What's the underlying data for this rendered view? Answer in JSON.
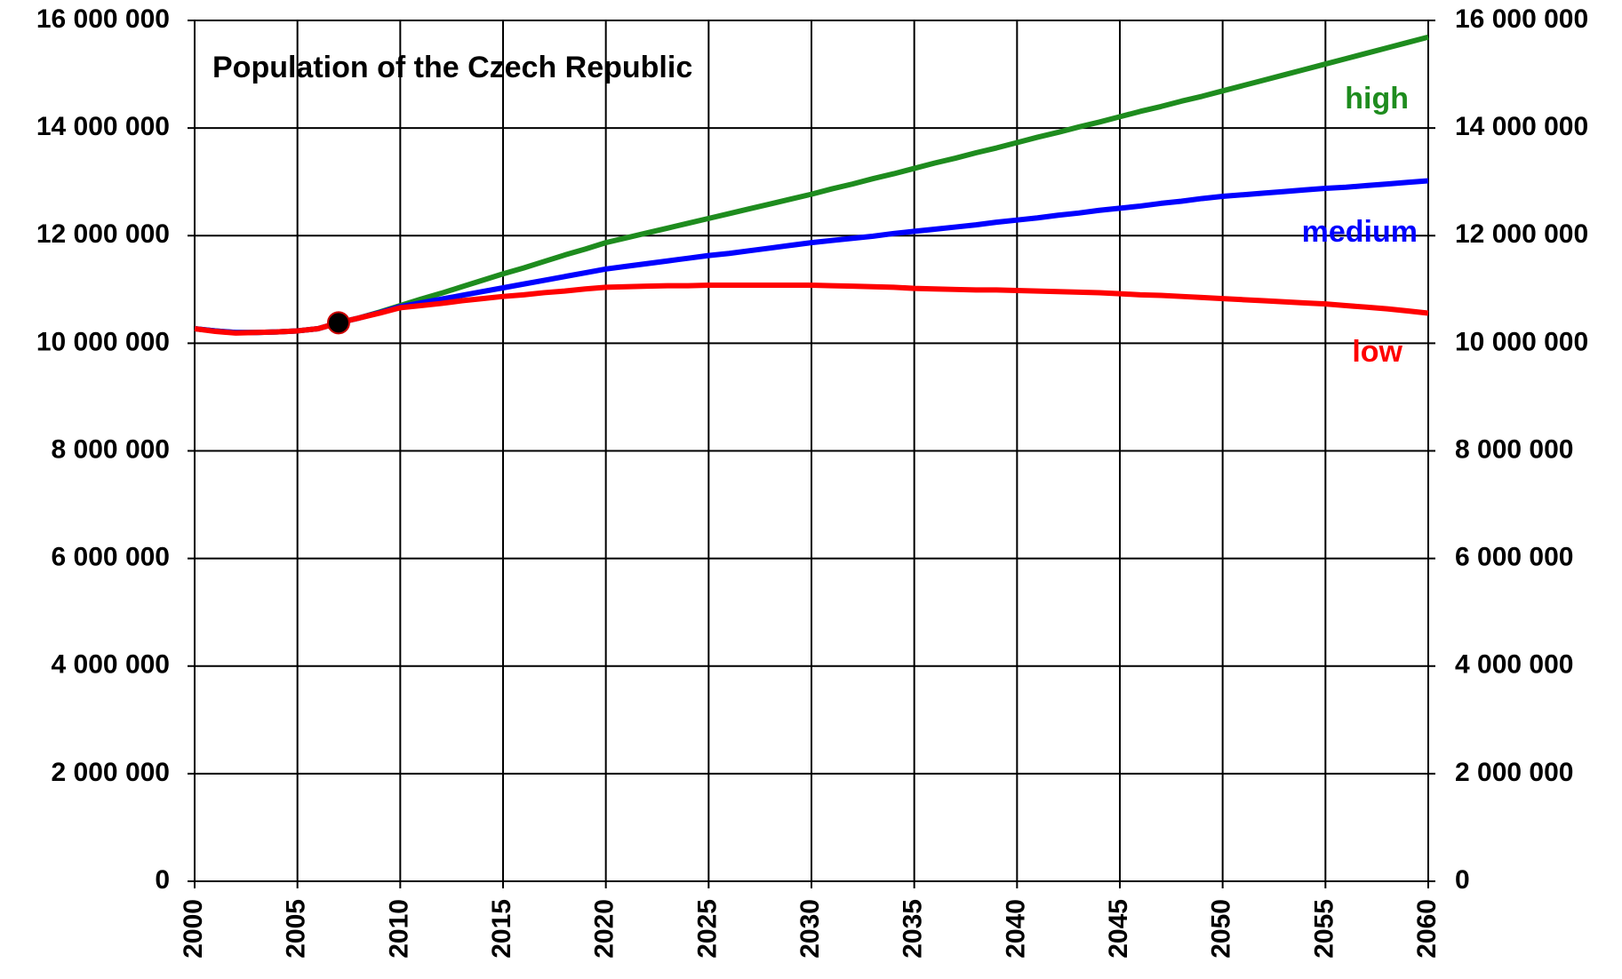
{
  "chart_data": {
    "type": "line",
    "title": "Population of the Czech Republic",
    "x": [
      2000,
      2001,
      2002,
      2003,
      2004,
      2005,
      2006,
      2007,
      2008,
      2009,
      2010,
      2011,
      2012,
      2013,
      2014,
      2015,
      2016,
      2017,
      2018,
      2019,
      2020,
      2021,
      2022,
      2023,
      2024,
      2025,
      2026,
      2027,
      2028,
      2029,
      2030,
      2031,
      2032,
      2033,
      2034,
      2035,
      2036,
      2037,
      2038,
      2039,
      2040,
      2041,
      2042,
      2043,
      2044,
      2045,
      2046,
      2047,
      2048,
      2049,
      2050,
      2051,
      2052,
      2053,
      2054,
      2055,
      2056,
      2057,
      2058,
      2059,
      2060
    ],
    "series": [
      {
        "name": "high",
        "color": "#1e8c1e",
        "values": [
          10270000,
          10230000,
          10200000,
          10200000,
          10210000,
          10230000,
          10270000,
          10380000,
          10470000,
          10580000,
          10700000,
          10820000,
          10930000,
          11050000,
          11170000,
          11290000,
          11400000,
          11520000,
          11640000,
          11750000,
          11870000,
          11960000,
          12050000,
          12140000,
          12230000,
          12320000,
          12410000,
          12500000,
          12590000,
          12680000,
          12770000,
          12870000,
          12960000,
          13060000,
          13150000,
          13250000,
          13350000,
          13440000,
          13540000,
          13630000,
          13730000,
          13830000,
          13920000,
          14020000,
          14110000,
          14210000,
          14310000,
          14400000,
          14500000,
          14590000,
          14690000,
          14790000,
          14890000,
          14990000,
          15090000,
          15190000,
          15290000,
          15390000,
          15490000,
          15590000,
          15690000
        ]
      },
      {
        "name": "medium",
        "color": "#0000ff",
        "values": [
          10270000,
          10230000,
          10200000,
          10200000,
          10210000,
          10230000,
          10270000,
          10380000,
          10470000,
          10570000,
          10680000,
          10750000,
          10820000,
          10890000,
          10960000,
          11030000,
          11100000,
          11170000,
          11240000,
          11310000,
          11380000,
          11430000,
          11480000,
          11530000,
          11580000,
          11630000,
          11670000,
          11720000,
          11770000,
          11820000,
          11870000,
          11910000,
          11950000,
          11990000,
          12040000,
          12080000,
          12120000,
          12160000,
          12200000,
          12250000,
          12290000,
          12330000,
          12380000,
          12420000,
          12470000,
          12510000,
          12550000,
          12600000,
          12640000,
          12690000,
          12730000,
          12760000,
          12790000,
          12820000,
          12850000,
          12880000,
          12900000,
          12930000,
          12960000,
          12990000,
          13020000
        ]
      },
      {
        "name": "low",
        "color": "#ff0000",
        "values": [
          10270000,
          10220000,
          10190000,
          10200000,
          10210000,
          10230000,
          10270000,
          10380000,
          10470000,
          10560000,
          10660000,
          10700000,
          10740000,
          10790000,
          10830000,
          10870000,
          10900000,
          10940000,
          10970000,
          11010000,
          11040000,
          11050000,
          11060000,
          11070000,
          11070000,
          11080000,
          11080000,
          11080000,
          11080000,
          11080000,
          11080000,
          11070000,
          11060000,
          11050000,
          11040000,
          11020000,
          11010000,
          11000000,
          10990000,
          10990000,
          10980000,
          10970000,
          10960000,
          10950000,
          10940000,
          10920000,
          10900000,
          10890000,
          10870000,
          10850000,
          10830000,
          10810000,
          10790000,
          10770000,
          10750000,
          10730000,
          10700000,
          10670000,
          10640000,
          10600000,
          10560000
        ]
      }
    ],
    "highlight_point": {
      "x": 2007,
      "y": 10380000,
      "color": "#000000"
    },
    "xlim": [
      2000,
      2060
    ],
    "xticks": [
      2000,
      2005,
      2010,
      2015,
      2020,
      2025,
      2030,
      2035,
      2040,
      2045,
      2050,
      2055,
      2060
    ],
    "ylim": [
      0,
      16000000
    ],
    "yticks": [
      0,
      {
        "value": 2000000,
        "label": "2 000 000"
      },
      {
        "value": 4000000,
        "label": "4 000 000"
      },
      {
        "value": 6000000,
        "label": "6 000 000"
      },
      {
        "value": 8000000,
        "label": "8 000 000"
      },
      {
        "value": 10000000,
        "label": "10 000 000"
      },
      {
        "value": 12000000,
        "label": "12 000 000"
      },
      {
        "value": 14000000,
        "label": "14 000 000"
      },
      {
        "value": 16000000,
        "label": "16 000 000"
      }
    ],
    "y2lim": [
      0,
      16000000
    ],
    "y2ticks": [
      0,
      {
        "value": 2000000,
        "label": "2 000 000"
      },
      {
        "value": 4000000,
        "label": "4 000 000"
      },
      {
        "value": 6000000,
        "label": "6 000 000"
      },
      {
        "value": 8000000,
        "label": "8 000 000"
      },
      {
        "value": 10000000,
        "label": "10 000 000"
      },
      {
        "value": 12000000,
        "label": "12 000 000"
      },
      {
        "value": 14000000,
        "label": "14 000 000"
      },
      {
        "value": 16000000,
        "label": "16 000 000"
      }
    ],
    "grid": true
  }
}
